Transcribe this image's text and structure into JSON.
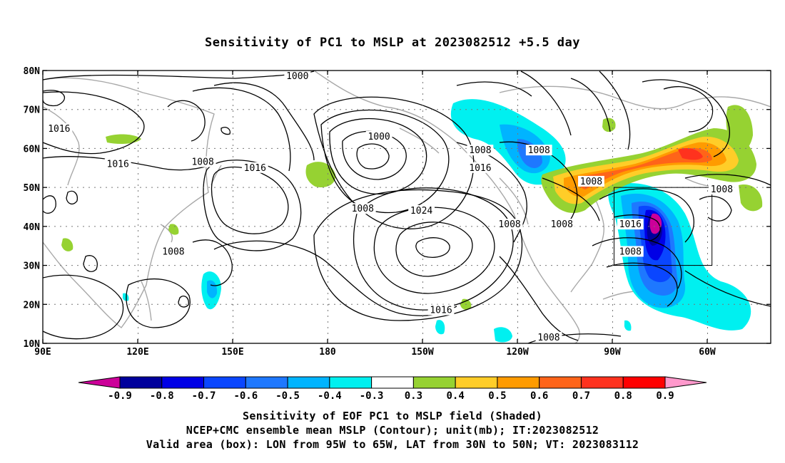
{
  "title": "Sensitivity of PC1 to MSLP at 2023082512 +5.5 day",
  "axes": {
    "lon_ticks": [
      "90E",
      "120E",
      "150E",
      "180",
      "150W",
      "120W",
      "90W",
      "60W"
    ],
    "lat_ticks": [
      "80N",
      "70N",
      "60N",
      "50N",
      "40N",
      "30N",
      "20N",
      "10N"
    ],
    "lon_range_deg_east": [
      90,
      313
    ],
    "lat_range_deg": [
      10,
      80
    ],
    "grid": "dotted"
  },
  "contour_labels": [
    {
      "text": "1000",
      "lon": 168,
      "lat": 78.5
    },
    {
      "text": "1016",
      "lon": 95,
      "lat": 65
    },
    {
      "text": "1016",
      "lon": 113,
      "lat": 56
    },
    {
      "text": "1008",
      "lon": 139,
      "lat": 56.5
    },
    {
      "text": "1016",
      "lon": 155,
      "lat": 55
    },
    {
      "text": "1000",
      "lon": 193,
      "lat": 63
    },
    {
      "text": "1008",
      "lon": 224,
      "lat": 59.5
    },
    {
      "text": "1008",
      "lon": 242,
      "lat": 59.5
    },
    {
      "text": "1016",
      "lon": 224,
      "lat": 55
    },
    {
      "text": "1008",
      "lon": 188,
      "lat": 44.5
    },
    {
      "text": "1024",
      "lon": 206,
      "lat": 44
    },
    {
      "text": "1008",
      "lon": 258,
      "lat": 51.5
    },
    {
      "text": "1008",
      "lon": 298,
      "lat": 49.5
    },
    {
      "text": "1008",
      "lon": 233,
      "lat": 40.5
    },
    {
      "text": "1008",
      "lon": 249,
      "lat": 40.5
    },
    {
      "text": "1016",
      "lon": 270,
      "lat": 40.5
    },
    {
      "text": "1008",
      "lon": 130,
      "lat": 33.5
    },
    {
      "text": "1008",
      "lon": 270,
      "lat": 33.5
    },
    {
      "text": "1016",
      "lon": 212,
      "lat": 18.5
    },
    {
      "text": "1008",
      "lon": 245,
      "lat": 11.5
    }
  ],
  "valid_box": {
    "lon_west": 265,
    "lon_east": 295,
    "lat_south": 30,
    "lat_north": 50
  },
  "colorbar": {
    "labels": [
      "-0.9",
      "-0.8",
      "-0.7",
      "-0.6",
      "-0.5",
      "-0.4",
      "-0.3",
      "0.3",
      "0.4",
      "0.5",
      "0.6",
      "0.7",
      "0.8",
      "0.9"
    ],
    "colors": [
      "#00009c",
      "#0000e6",
      "#0a46ff",
      "#1e78ff",
      "#00b4ff",
      "#00f0f0",
      "#ffffff",
      "#96d232",
      "#ffcd28",
      "#ff9b00",
      "#ff6419",
      "#ff321e",
      "#ff0000"
    ],
    "low_end_color": "#cc0099",
    "high_end_color": "#ff99cc"
  },
  "caption": {
    "line1": "Sensitivity of EOF PC1 to MSLP field (Shaded)",
    "line2": "NCEP+CMC ensemble mean MSLP (Contour); unit(mb); IT:2023082512",
    "line3": "Valid area (box): LON from 95W to 65W, LAT from 30N to 50N; VT: 2023083112"
  }
}
